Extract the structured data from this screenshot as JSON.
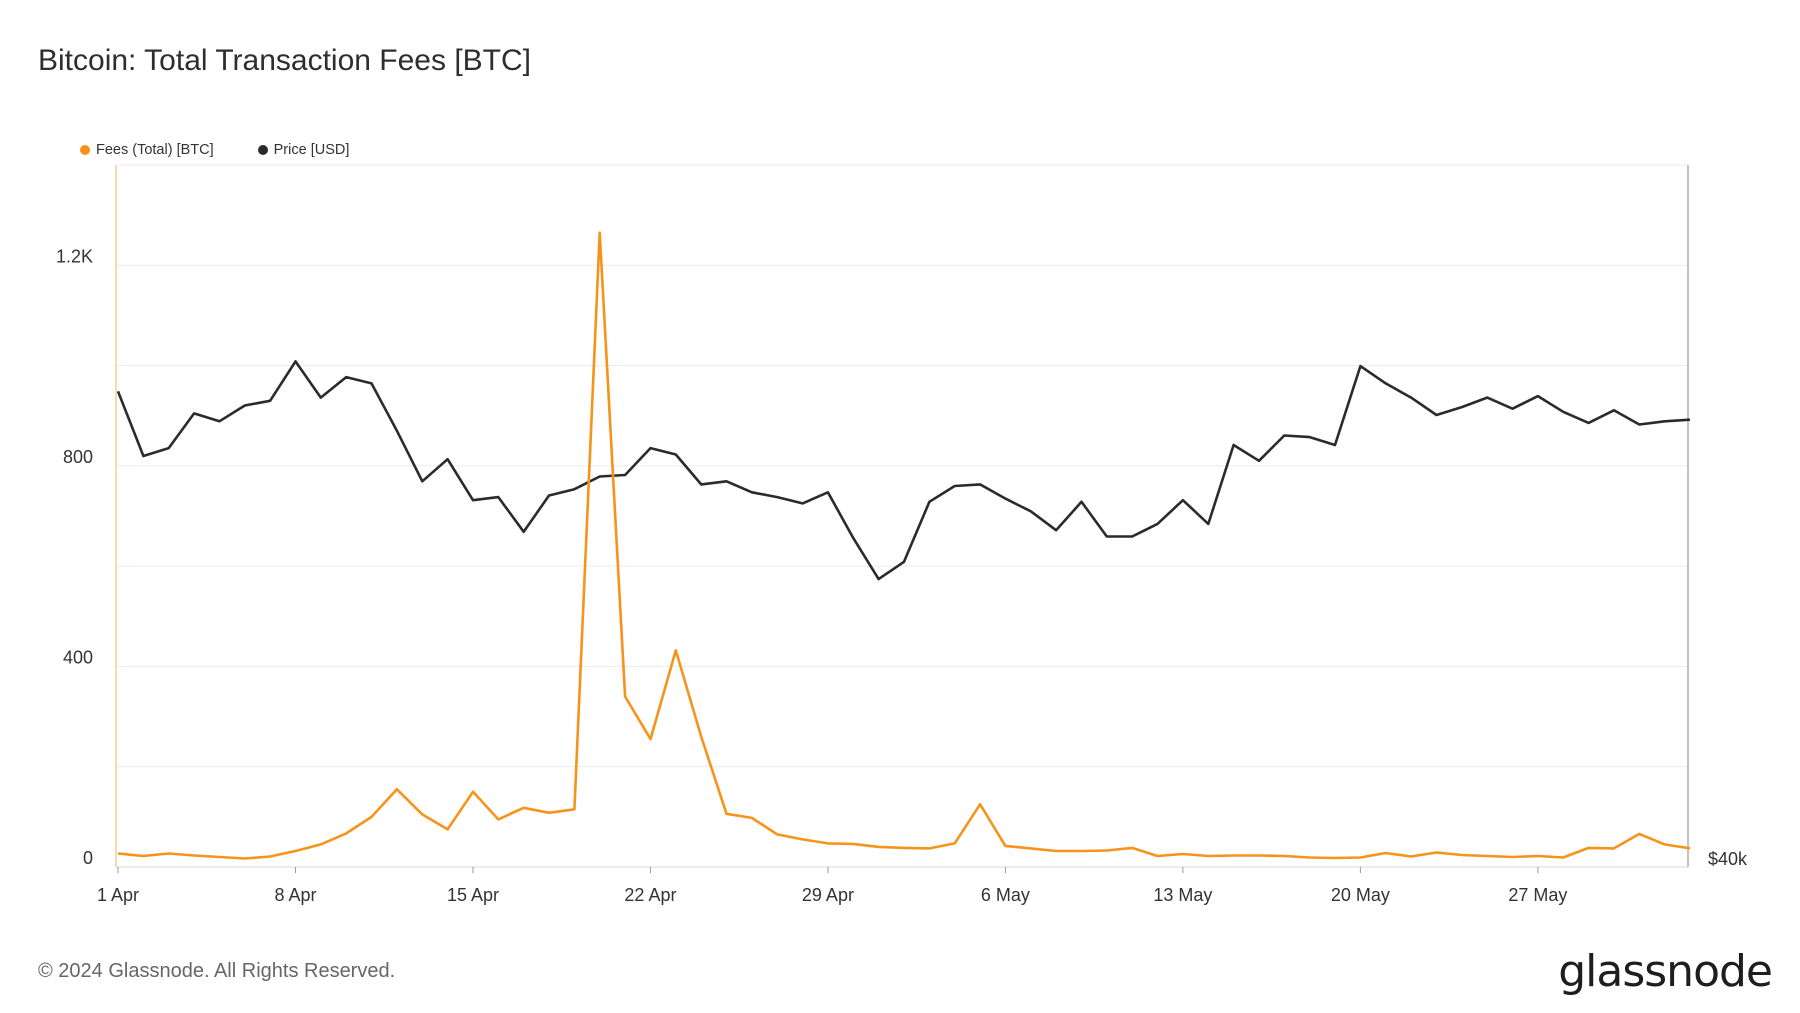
{
  "header": {
    "title": "Bitcoin: Total Transaction Fees [BTC]"
  },
  "footer": {
    "copyright": "© 2024 Glassnode. All Rights Reserved.",
    "brand": "glassnode"
  },
  "colors": {
    "fees": "#f7931a",
    "price": "#2b2b2b",
    "grid": "#ececec"
  },
  "chart_data": {
    "type": "line",
    "legend_position": "top-left",
    "grid": true,
    "x_tick_labels": [
      "1 Apr",
      "8 Apr",
      "15 Apr",
      "22 Apr",
      "29 Apr",
      "6 May",
      "13 May",
      "20 May",
      "27 May"
    ],
    "y_left": {
      "ticks": [
        0,
        400,
        800,
        1200
      ],
      "tick_labels": [
        "0",
        "400",
        "800",
        "1.2K"
      ],
      "range": [
        0,
        1400
      ]
    },
    "y_right": {
      "tick_labels": [
        "$40k"
      ]
    },
    "x": [
      "2024-04-01",
      "2024-04-02",
      "2024-04-03",
      "2024-04-04",
      "2024-04-05",
      "2024-04-06",
      "2024-04-07",
      "2024-04-08",
      "2024-04-09",
      "2024-04-10",
      "2024-04-11",
      "2024-04-12",
      "2024-04-13",
      "2024-04-14",
      "2024-04-15",
      "2024-04-16",
      "2024-04-17",
      "2024-04-18",
      "2024-04-19",
      "2024-04-20",
      "2024-04-21",
      "2024-04-22",
      "2024-04-23",
      "2024-04-24",
      "2024-04-25",
      "2024-04-26",
      "2024-04-27",
      "2024-04-28",
      "2024-04-29",
      "2024-04-30",
      "2024-05-01",
      "2024-05-02",
      "2024-05-03",
      "2024-05-04",
      "2024-05-05",
      "2024-05-06",
      "2024-05-07",
      "2024-05-08",
      "2024-05-09",
      "2024-05-10",
      "2024-05-11",
      "2024-05-12",
      "2024-05-13",
      "2024-05-14",
      "2024-05-15",
      "2024-05-16",
      "2024-05-17",
      "2024-05-18",
      "2024-05-19",
      "2024-05-20",
      "2024-05-21",
      "2024-05-22",
      "2024-05-23",
      "2024-05-24",
      "2024-05-25",
      "2024-05-26",
      "2024-05-27",
      "2024-05-28",
      "2024-05-29",
      "2024-05-30",
      "2024-05-31",
      "2024-06-01",
      "2024-06-02"
    ],
    "series": [
      {
        "name": "Fees (Total) [BTC]",
        "axis": "left",
        "color": "#f7931a",
        "values": [
          27,
          22,
          27,
          23,
          20,
          17,
          21,
          32,
          45,
          67,
          100,
          155,
          105,
          75,
          150,
          95,
          118,
          108,
          115,
          1265,
          340,
          255,
          432,
          260,
          106,
          98,
          65,
          55,
          47,
          46,
          40,
          38,
          37,
          47,
          125,
          42,
          37,
          32,
          32,
          33,
          38,
          22,
          26,
          22,
          23,
          23,
          22,
          19,
          18,
          19,
          28,
          21,
          29,
          24,
          22,
          20,
          22,
          19,
          38,
          37,
          66,
          45,
          37
        ]
      },
      {
        "name": "Price [USD]",
        "axis": "right",
        "color": "#2b2b2b",
        "values": [
          69700,
          65600,
          66100,
          68300,
          67800,
          68800,
          69100,
          71600,
          69300,
          70600,
          70200,
          67200,
          64000,
          65400,
          62800,
          63000,
          60800,
          63100,
          63500,
          64300,
          64400,
          66100,
          65700,
          63800,
          64000,
          63300,
          63000,
          62600,
          63300,
          60400,
          57800,
          58900,
          62700,
          63700,
          63800,
          62900,
          62100,
          60900,
          62700,
          60500,
          60500,
          61300,
          62800,
          61300,
          66300,
          65300,
          66900,
          66800,
          66300,
          71300,
          70200,
          69300,
          68200,
          68700,
          69300,
          68600,
          69400,
          68400,
          67700,
          68500,
          67600,
          67800,
          67900
        ]
      }
    ]
  }
}
